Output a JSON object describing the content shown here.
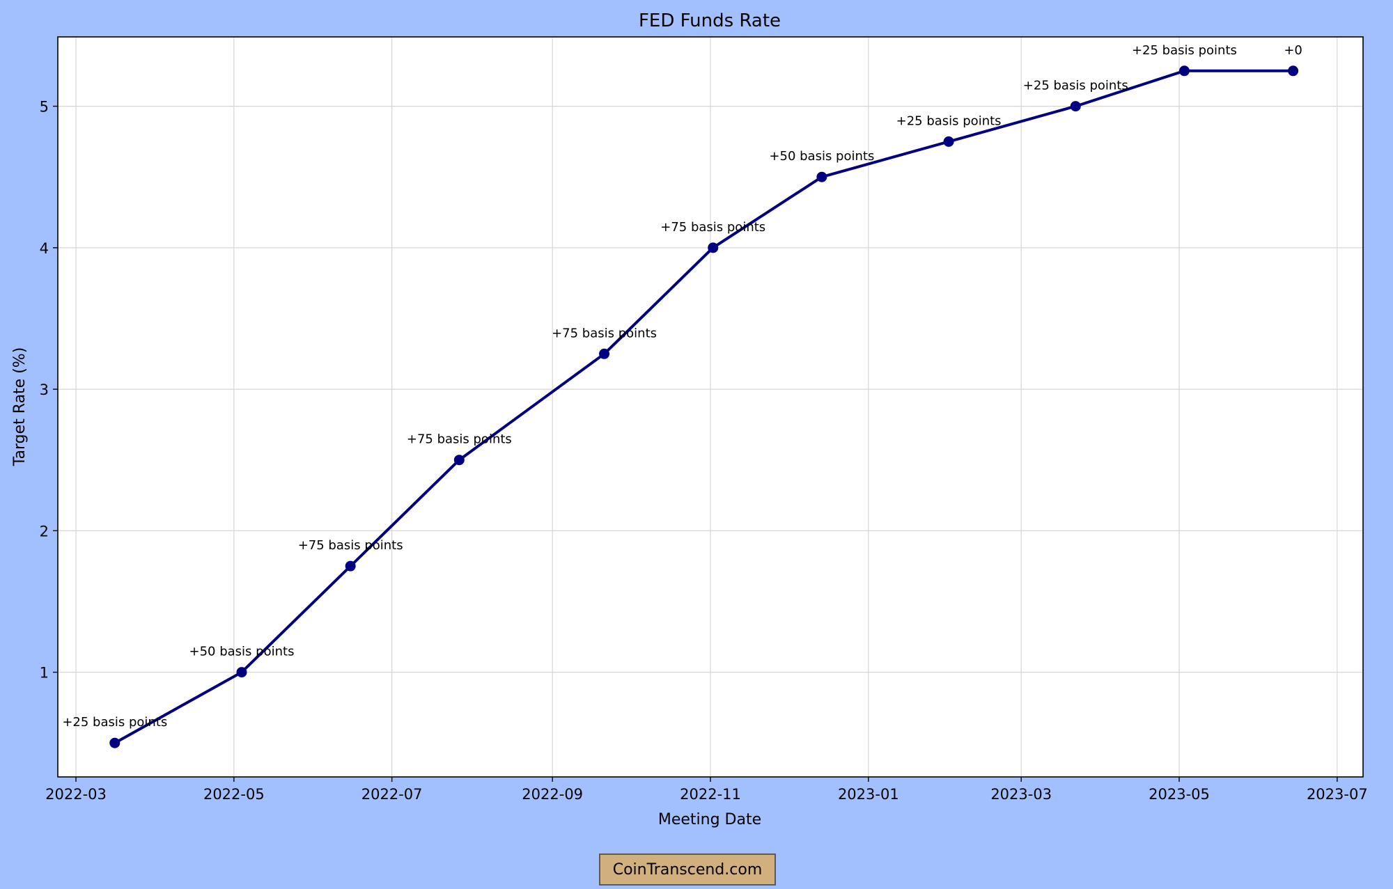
{
  "chart_data": {
    "type": "line",
    "title": "FED Funds Rate",
    "xlabel": "Meeting Date",
    "ylabel": "Target Rate (%)",
    "x_ticks": [
      "2022-03",
      "2022-05",
      "2022-07",
      "2022-09",
      "2022-11",
      "2023-01",
      "2023-03",
      "2023-05",
      "2023-07"
    ],
    "y_ticks": [
      "1",
      "2",
      "3",
      "4",
      "5"
    ],
    "x_range": [
      "2022-02-22",
      "2023-07-11"
    ],
    "ylim": [
      0.26,
      5.49
    ],
    "grid": true,
    "line_color": "#000080",
    "points": [
      {
        "date": "2022-03-16",
        "value": 0.5,
        "label": "+25 basis points"
      },
      {
        "date": "2022-05-04",
        "value": 1.0,
        "label": "+50 basis points"
      },
      {
        "date": "2022-06-15",
        "value": 1.75,
        "label": "+75 basis points"
      },
      {
        "date": "2022-07-27",
        "value": 2.5,
        "label": "+75 basis points"
      },
      {
        "date": "2022-09-21",
        "value": 3.25,
        "label": "+75 basis points"
      },
      {
        "date": "2022-11-02",
        "value": 4.0,
        "label": "+75 basis points"
      },
      {
        "date": "2022-12-14",
        "value": 4.5,
        "label": "+50 basis points"
      },
      {
        "date": "2023-02-01",
        "value": 4.75,
        "label": "+25 basis points"
      },
      {
        "date": "2023-03-22",
        "value": 5.0,
        "label": "+25 basis points"
      },
      {
        "date": "2023-05-03",
        "value": 5.25,
        "label": "+25 basis points"
      },
      {
        "date": "2023-06-14",
        "value": 5.25,
        "label": "+0"
      }
    ]
  },
  "watermark": "CoinTranscend.com"
}
